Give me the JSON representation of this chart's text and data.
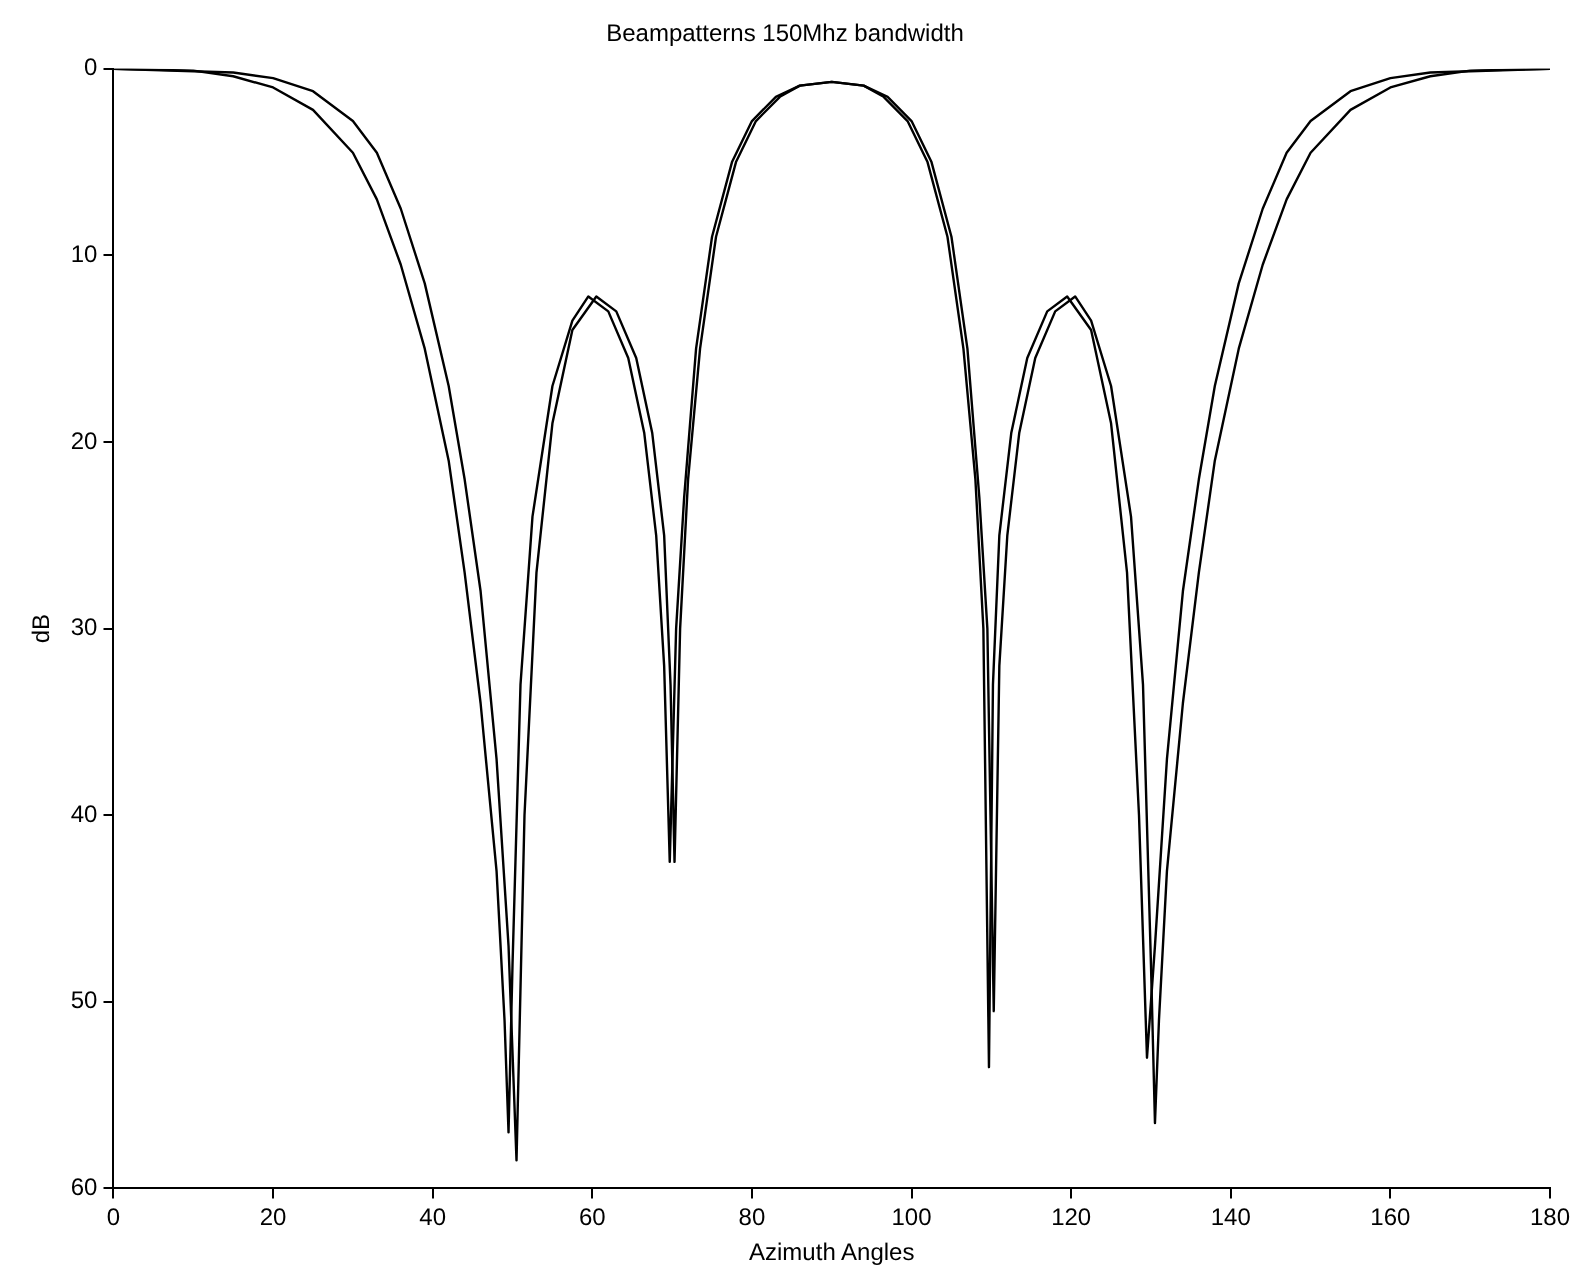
{
  "chart_data": {
    "type": "line",
    "title": "Beampatterns 150Mhz bandwidth",
    "xlabel": "Azimuth Angles",
    "ylabel": "dB",
    "xlim": [
      0,
      180
    ],
    "xticks": [
      0,
      20,
      40,
      60,
      80,
      100,
      120,
      140,
      160,
      180
    ],
    "ylim": [
      60,
      0
    ],
    "yticks": [
      0,
      10,
      20,
      30,
      40,
      50,
      60
    ],
    "grid": false,
    "legend": false,
    "marker": "none",
    "line_style": "solid",
    "series": [
      {
        "color": "#000000",
        "x": [
          0,
          10,
          15,
          20,
          25,
          30,
          33,
          36,
          39,
          42,
          44,
          46,
          48,
          49,
          49.5,
          50,
          51,
          52.5,
          55,
          57.5,
          59.5,
          62,
          64.5,
          66.5,
          68,
          69,
          69.7,
          70.5,
          71.5,
          73,
          75,
          77.5,
          80,
          83,
          86,
          90,
          94,
          97,
          100,
          102.5,
          105,
          107,
          108.5,
          109.5,
          110.3,
          111,
          112,
          113.5,
          115.5,
          118,
          120.5,
          122.5,
          125,
          127.5,
          129,
          130,
          130.5,
          131,
          132,
          134,
          136,
          138,
          141,
          144,
          147,
          150,
          155,
          160,
          165,
          170,
          180
        ],
        "values": [
          0,
          0.1,
          0.4,
          1,
          2.2,
          4.5,
          7,
          10.5,
          15,
          21,
          27,
          34,
          43,
          51,
          57,
          48,
          33,
          24,
          17,
          13.5,
          12.2,
          13,
          15.5,
          19.5,
          25,
          32,
          42.5,
          30,
          23,
          15,
          9,
          5,
          2.8,
          1.5,
          0.9,
          0.7,
          0.9,
          1.5,
          2.8,
          5,
          9,
          15,
          23,
          30,
          50.5,
          32,
          25,
          19.5,
          15.5,
          13,
          12.2,
          13.5,
          17,
          24,
          33,
          48,
          56.5,
          51,
          43,
          34,
          27,
          21,
          15,
          10.5,
          7,
          4.5,
          2.2,
          1,
          0.4,
          0.1,
          0
        ]
      },
      {
        "color": "#000000",
        "x": [
          0,
          15,
          20,
          25,
          30,
          33,
          36,
          39,
          42,
          44,
          46,
          48,
          49.5,
          50.5,
          51.5,
          53,
          55,
          57.5,
          60.5,
          63,
          65.5,
          67.5,
          69,
          69.8,
          70.3,
          71,
          72,
          73.5,
          75.5,
          78,
          80.5,
          83.5,
          86,
          90,
          94,
          96.5,
          99.5,
          102,
          104.5,
          106.5,
          108,
          109,
          109.7,
          110.2,
          111,
          112.5,
          114.5,
          117,
          119.5,
          122.5,
          125,
          127,
          128.5,
          129.5,
          130.5,
          132,
          134,
          136,
          138,
          141,
          144,
          147,
          150,
          155,
          160,
          165,
          180
        ],
        "values": [
          0,
          0.2,
          0.5,
          1.2,
          2.8,
          4.5,
          7.5,
          11.5,
          17,
          22,
          28,
          37,
          47,
          58.5,
          40,
          27,
          19,
          14,
          12.2,
          13,
          15.5,
          19.5,
          25,
          33,
          42.5,
          30,
          22,
          15,
          9,
          5,
          2.8,
          1.5,
          0.9,
          0.7,
          0.9,
          1.5,
          2.8,
          5,
          9,
          15,
          22,
          30,
          53.5,
          33,
          25,
          19.5,
          15.5,
          13,
          12.2,
          14,
          19,
          27,
          40,
          53,
          47,
          37,
          28,
          22,
          17,
          11.5,
          7.5,
          4.5,
          2.8,
          1.2,
          0.5,
          0.2,
          0
        ]
      }
    ]
  }
}
